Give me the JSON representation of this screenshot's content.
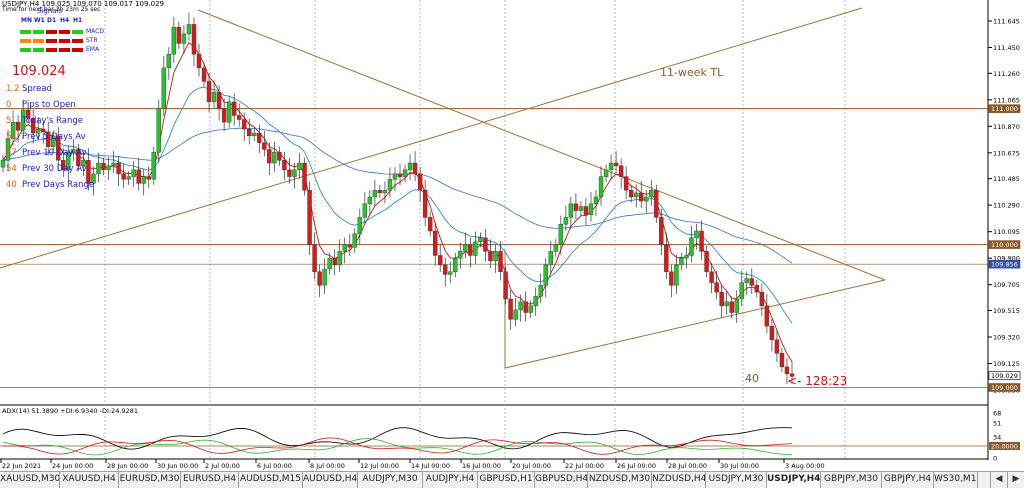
{
  "chart_data": {
    "type": "candlestick",
    "symbol": "USDJPY",
    "timeframe": "H4",
    "header": "USDJPY,H4  109.025 109.070 109.017 109.029",
    "header_line2": "Time for next bar 2h 23m 25 sec",
    "price_axis": [
      "111.645",
      "111.450",
      "111.260",
      "111.065",
      "110.870",
      "110.675",
      "110.485",
      "110.290",
      "110.095",
      "109.900",
      "109.705",
      "109.515",
      "109.320",
      "109.125",
      "108.930"
    ],
    "price_tags": [
      {
        "label": "111.000",
        "color": "#8B5A2B"
      },
      {
        "label": "110.000",
        "color": "#8B5A2B"
      },
      {
        "label": "109.856",
        "color": "#3050a0"
      },
      {
        "label": "109.029",
        "color": "#ffffff"
      },
      {
        "label": "109.000",
        "color": "#8B5A2B"
      }
    ],
    "time_axis": [
      "22 Jun 2021",
      "24 Jun 00:00",
      "28 Jun 00:00",
      "30 Jun 00:00",
      "2 Jul 00:00",
      "6 Jul 00:00",
      "8 Jul 00:00",
      "12 Jul 00:00",
      "14 Jul 00:00",
      "16 Jul 00:00",
      "20 Jul 00:00",
      "22 Jul 00:00",
      "26 Jul 00:00",
      "28 Jul 00:00",
      "30 Jul 00:00",
      "3 Aug 00:00"
    ],
    "close_path": [
      110.62,
      110.78,
      110.9,
      110.84,
      110.99,
      110.93,
      110.82,
      110.85,
      110.83,
      110.72,
      110.8,
      110.62,
      110.55,
      110.68,
      110.7,
      110.58,
      110.62,
      110.45,
      110.52,
      110.6,
      110.55,
      110.58,
      110.6,
      110.52,
      110.48,
      110.5,
      110.55,
      110.45,
      110.5,
      110.48,
      110.68,
      111.0,
      111.3,
      111.4,
      111.6,
      111.48,
      111.55,
      111.62,
      111.4,
      111.3,
      111.2,
      111.05,
      111.12,
      111.0,
      110.9,
      111.05,
      110.95,
      110.92,
      110.85,
      110.8,
      110.82,
      110.75,
      110.7,
      110.6,
      110.68,
      110.62,
      110.55,
      110.5,
      110.55,
      110.6,
      110.4,
      110.0,
      109.8,
      109.7,
      109.82,
      109.9,
      109.85,
      109.95,
      110.0,
      109.98,
      110.08,
      110.2,
      110.3,
      110.35,
      110.4,
      110.38,
      110.4,
      110.48,
      110.52,
      110.5,
      110.55,
      110.6,
      110.52,
      110.4,
      110.2,
      110.1,
      109.92,
      109.85,
      109.78,
      109.8,
      109.9,
      109.95,
      110.0,
      109.92,
      110.02,
      110.05,
      109.95,
      109.88,
      109.95,
      109.8,
      109.6,
      109.45,
      109.52,
      109.58,
      109.5,
      109.55,
      109.62,
      109.7,
      109.85,
      109.95,
      110.0,
      110.15,
      110.2,
      110.3,
      110.25,
      110.28,
      110.22,
      110.3,
      110.35,
      110.5,
      110.55,
      110.6,
      110.58,
      110.5,
      110.4,
      110.35,
      110.38,
      110.32,
      110.35,
      110.4,
      110.2,
      110.0,
      109.8,
      109.7,
      109.85,
      109.9,
      109.92,
      110.05,
      110.1,
      109.95,
      109.8,
      109.72,
      109.65,
      109.55,
      109.58,
      109.5,
      109.6,
      109.72,
      109.75,
      109.7,
      109.65,
      109.55,
      109.4,
      109.3,
      109.2,
      109.1,
      109.05,
      109.03
    ]
  },
  "info_panel": {
    "signals_title": "Signals",
    "timeframes": [
      "MN",
      "W1",
      "D1",
      "H4",
      "H1"
    ],
    "indicators": [
      "MACD",
      "STR",
      "EMA"
    ],
    "rows": [
      [
        "#22cc22",
        "#22cc22",
        "#cc0000",
        "#cc0000",
        "#22cc22"
      ],
      [
        "#ff8800",
        "#ff8800",
        "#cc0000",
        "#cc0000",
        "#cc0000"
      ],
      [
        "#22cc22",
        "#22cc22",
        "#cc0000",
        "#cc0000",
        "#cc0000"
      ]
    ],
    "price": "109.024",
    "stats": [
      {
        "value": "1.2",
        "label": "Spread"
      },
      {
        "value": "0",
        "label": "Pips to Open"
      },
      {
        "value": "5",
        "label": "Today's Range"
      },
      {
        "value": "51",
        "label": "Prev 5 Days Av"
      },
      {
        "value": "57",
        "label": "Prev 10 Day Av"
      },
      {
        "value": "54",
        "label": "Prev 30 Day Av"
      },
      {
        "value": "40",
        "label": "Prev Days Range"
      }
    ]
  },
  "annotations": {
    "trendline_label": "11-week TL",
    "pips_label": "40",
    "countdown": "<- 128:23"
  },
  "adx_panel": {
    "label": "ADX(14) 51.3890 +DI:6.9340 -DI:24.9281",
    "levels": [
      "68",
      "51",
      "34",
      "20.0000",
      "0"
    ]
  },
  "tabs": [
    "XAUUSD,M30",
    "XAUUSD,H4",
    "EURUSD,M30",
    "EURUSD,H4",
    "AUDUSD,M15",
    "AUDUSD,H4",
    "AUDJPY,M30",
    "AUDJPY,H4",
    "GBPUSD,H1",
    "GBPUSD,H4",
    "NZDUSD,M30",
    "NZDUSD,H4",
    "USDJPY,M30",
    "USDJPY,H4",
    "GBPJPY,M30",
    "GBPJPY,H4",
    "WS30,M15"
  ],
  "active_tab": "USDJPY,H4",
  "tab_nav": {
    "left": "◀",
    "right": "▶"
  }
}
